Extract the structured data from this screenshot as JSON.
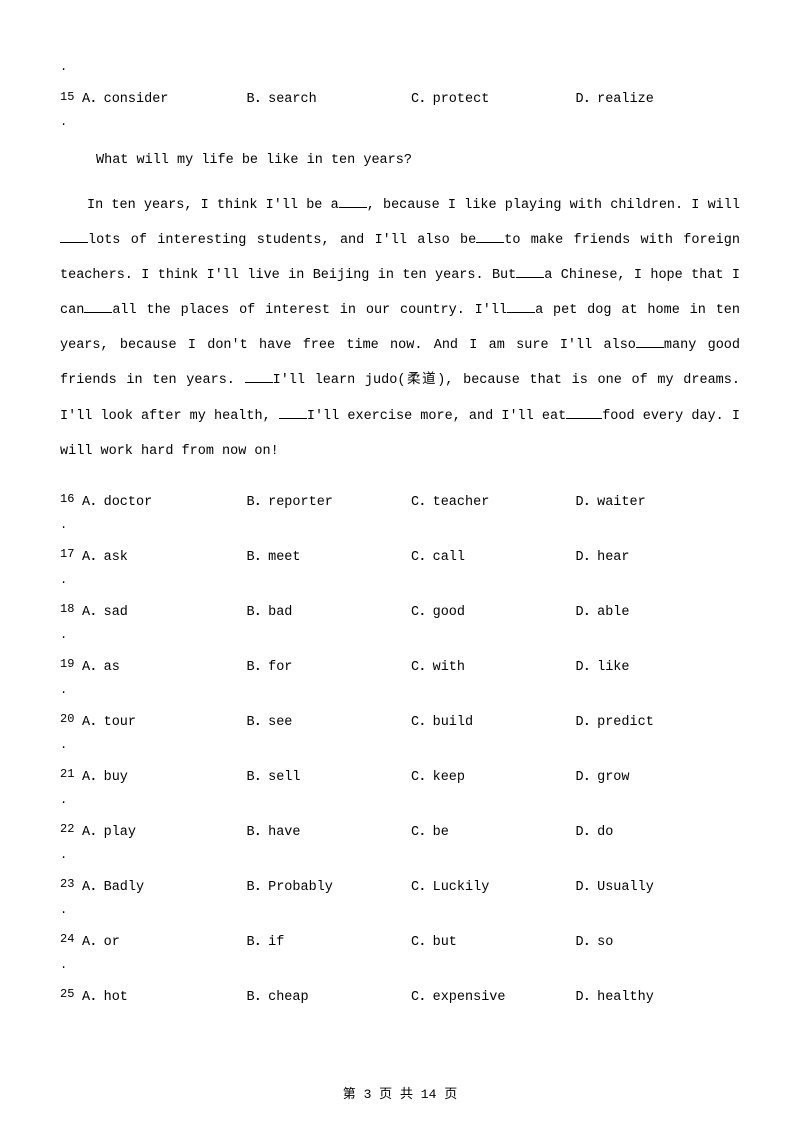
{
  "q15": {
    "num": "15",
    "dot": ".",
    "a": "A．consider",
    "b": "B．search",
    "c": "C．protect",
    "d": "D．realize"
  },
  "passage_title": "What will my life be like in ten years?",
  "passage": {
    "t1": "In ten years, I think I'll be a",
    "t2": ", because I like playing with children. I will",
    "t3": "lots of interesting students, and I'll also be",
    "t4": "to make friends with foreign teachers. I think I'll live in Beijing in ten years. But",
    "t5": "a Chinese, I hope that I can",
    "t6": "all the places of interest in our country. I'll",
    "t7": "a pet dog at home in ten years, because I don't have free time now. And I am sure I'll also",
    "t8": "many good friends in ten years. ",
    "t9": "I'll learn judo(柔道), because that is one of my dreams. I'll look after my health, ",
    "t10": "I'll exercise more, and I'll eat",
    "t11": "food every day. I will work hard from now on!"
  },
  "q16": {
    "num": "16",
    "dot": ".",
    "a": "A．doctor",
    "b": "B．reporter",
    "c": "C．teacher",
    "d": "D．waiter"
  },
  "q17": {
    "num": "17",
    "dot": ".",
    "a": "A．ask",
    "b": "B．meet",
    "c": "C．call",
    "d": "D．hear"
  },
  "q18": {
    "num": "18",
    "dot": ".",
    "a": "A．sad",
    "b": "B．bad",
    "c": "C．good",
    "d": "D．able"
  },
  "q19": {
    "num": "19",
    "dot": ".",
    "a": "A．as",
    "b": "B．for",
    "c": "C．with",
    "d": "D．like"
  },
  "q20": {
    "num": "20",
    "dot": ".",
    "a": "A．tour",
    "b": "B．see",
    "c": "C．build",
    "d": "D．predict"
  },
  "q21": {
    "num": "21",
    "dot": ".",
    "a": "A．buy",
    "b": "B．sell",
    "c": "C．keep",
    "d": "D．grow"
  },
  "q22": {
    "num": "22",
    "dot": ".",
    "a": "A．play",
    "b": "B．have",
    "c": "C．be",
    "d": "D．do"
  },
  "q23": {
    "num": "23",
    "dot": ".",
    "a": "A．Badly",
    "b": "B．Probably",
    "c": "C．Luckily",
    "d": "D．Usually"
  },
  "q24": {
    "num": "24",
    "dot": ".",
    "a": "A．or",
    "b": "B．if",
    "c": "C．but",
    "d": "D．so"
  },
  "q25": {
    "num": "25",
    "a": "A．hot",
    "b": "B．cheap",
    "c": "C．expensive",
    "d": "D．healthy"
  },
  "footer": "第 3 页 共 14 页"
}
